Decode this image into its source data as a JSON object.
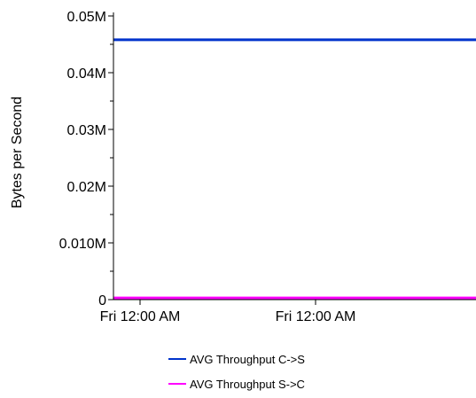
{
  "chart_data": {
    "type": "line",
    "title": "",
    "xlabel": "",
    "ylabel": "Bytes per Second",
    "ylim": [
      0,
      0.05
    ],
    "y_unit_suffix": "M",
    "y_ticks": [
      {
        "value": 0,
        "label": "0"
      },
      {
        "value": 0.01,
        "label": "0.010M"
      },
      {
        "value": 0.02,
        "label": "0.02M"
      },
      {
        "value": 0.03,
        "label": "0.03M"
      },
      {
        "value": 0.04,
        "label": "0.04M"
      },
      {
        "value": 0.05,
        "label": "0.05M"
      }
    ],
    "y_minor_ticks": [
      0.005,
      0.015,
      0.025,
      0.035,
      0.045
    ],
    "x_ticks": [
      {
        "label": "Fri 12:00 AM"
      },
      {
        "label": "Fri 12:00 AM"
      }
    ],
    "grid": false,
    "legend_position": "bottom",
    "series": [
      {
        "name": "AVG Throughput C->S",
        "color": "#0033cc",
        "values": [
          0.0458,
          0.0458
        ]
      },
      {
        "name": "AVG Throughput S->C",
        "color": "#ff00ff",
        "values": [
          0.0003,
          0.0003
        ]
      }
    ]
  }
}
